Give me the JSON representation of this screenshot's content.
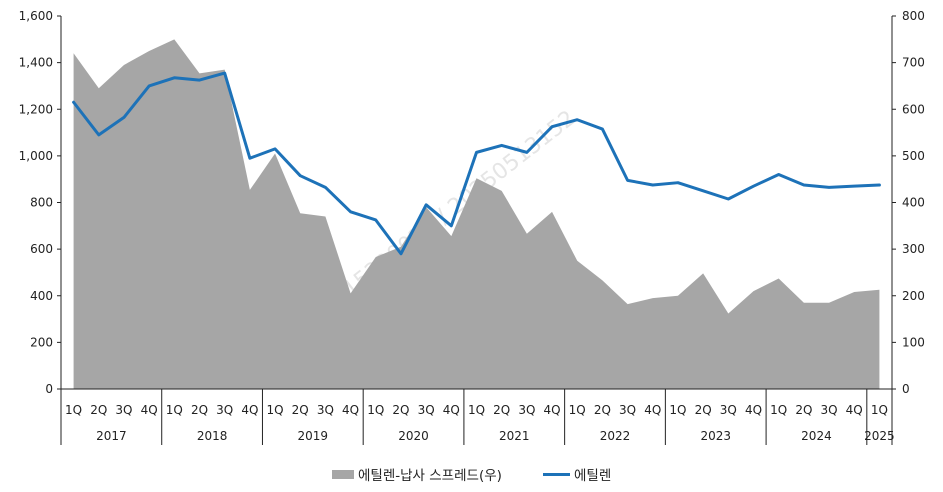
{
  "watermark_text": "530021 / N0015300021 / 20250513152",
  "chart_data": {
    "type": "area",
    "title": "",
    "x": [
      "1Q",
      "2Q",
      "3Q",
      "4Q",
      "1Q",
      "2Q",
      "3Q",
      "4Q",
      "1Q",
      "2Q",
      "3Q",
      "4Q",
      "1Q",
      "2Q",
      "3Q",
      "4Q",
      "1Q",
      "2Q",
      "3Q",
      "4Q",
      "1Q",
      "2Q",
      "3Q",
      "4Q",
      "1Q",
      "2Q",
      "3Q",
      "4Q",
      "1Q",
      "2Q",
      "3Q",
      "4Q",
      "1Q"
    ],
    "years": [
      {
        "label": "2017",
        "quarters": 4
      },
      {
        "label": "2018",
        "quarters": 4
      },
      {
        "label": "2019",
        "quarters": 4
      },
      {
        "label": "2020",
        "quarters": 4
      },
      {
        "label": "2021",
        "quarters": 4
      },
      {
        "label": "2022",
        "quarters": 4
      },
      {
        "label": "2023",
        "quarters": 4
      },
      {
        "label": "2024",
        "quarters": 4
      },
      {
        "label": "2025",
        "quarters": 1
      }
    ],
    "left_axis": {
      "ylim": [
        0,
        1600
      ],
      "ticks": [
        "0",
        "200",
        "400",
        "600",
        "800",
        "1,000",
        "1,200",
        "1,400",
        "1,600"
      ]
    },
    "right_axis": {
      "ylim": [
        0,
        800
      ],
      "ticks": [
        "0",
        "100",
        "200",
        "300",
        "400",
        "500",
        "600",
        "700",
        "800"
      ]
    },
    "series": [
      {
        "name": "에틸렌-납사 스프레드(우)",
        "kind": "area",
        "axis": "right",
        "color": "#a6a6a6",
        "values": [
          720,
          645,
          695,
          725,
          750,
          677,
          685,
          427,
          505,
          377,
          370,
          205,
          283,
          305,
          390,
          328,
          452,
          425,
          333,
          380,
          275,
          233,
          182,
          195,
          200,
          248,
          162,
          210,
          237,
          185,
          185,
          208,
          213
        ]
      },
      {
        "name": "에틸렌",
        "kind": "line",
        "axis": "left",
        "color": "#1d72b8",
        "values": [
          1230,
          1090,
          1165,
          1300,
          1335,
          1325,
          1355,
          990,
          1030,
          915,
          865,
          760,
          725,
          580,
          790,
          700,
          1015,
          1045,
          1015,
          1125,
          1155,
          1115,
          895,
          875,
          885,
          850,
          815,
          870,
          920,
          875,
          865,
          870,
          875
        ]
      }
    ],
    "legend": {
      "position": "bottom-center"
    },
    "grid": false
  }
}
